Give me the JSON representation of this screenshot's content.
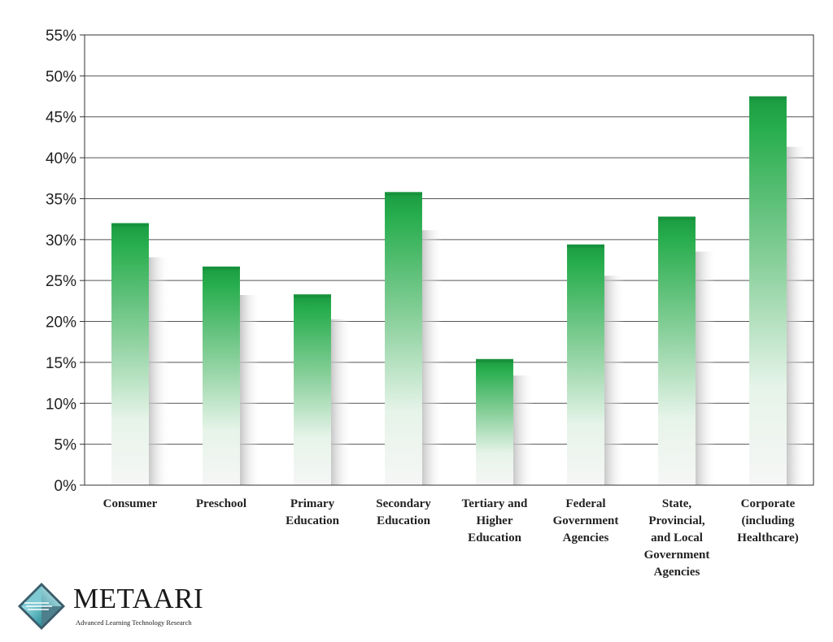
{
  "chart_data": {
    "type": "bar",
    "categories": [
      [
        "Consumer"
      ],
      [
        "Preschool"
      ],
      [
        "Primary",
        "Education"
      ],
      [
        "Secondary",
        "Education"
      ],
      [
        "Tertiary and",
        "Higher",
        "Education"
      ],
      [
        "Federal",
        "Government",
        "Agencies"
      ],
      [
        "State,",
        "Provincial,",
        "and Local",
        "Government",
        "Agencies"
      ],
      [
        "Corporate",
        "(including",
        "Healthcare)"
      ]
    ],
    "values": [
      32.0,
      26.7,
      23.3,
      35.8,
      15.4,
      29.4,
      32.8,
      47.5
    ],
    "ylim": [
      0,
      55
    ],
    "yticks": [
      0,
      5,
      10,
      15,
      20,
      25,
      30,
      35,
      40,
      45,
      50,
      55
    ],
    "ytick_labels": [
      "0%",
      "5%",
      "10%",
      "15%",
      "20%",
      "25%",
      "30%",
      "35%",
      "40%",
      "45%",
      "50%",
      "55%"
    ],
    "grid": true,
    "bar_color": "#1fa045"
  },
  "brand": {
    "name": "METAARI",
    "tagline": "Advanced Learning Technology Research"
  }
}
